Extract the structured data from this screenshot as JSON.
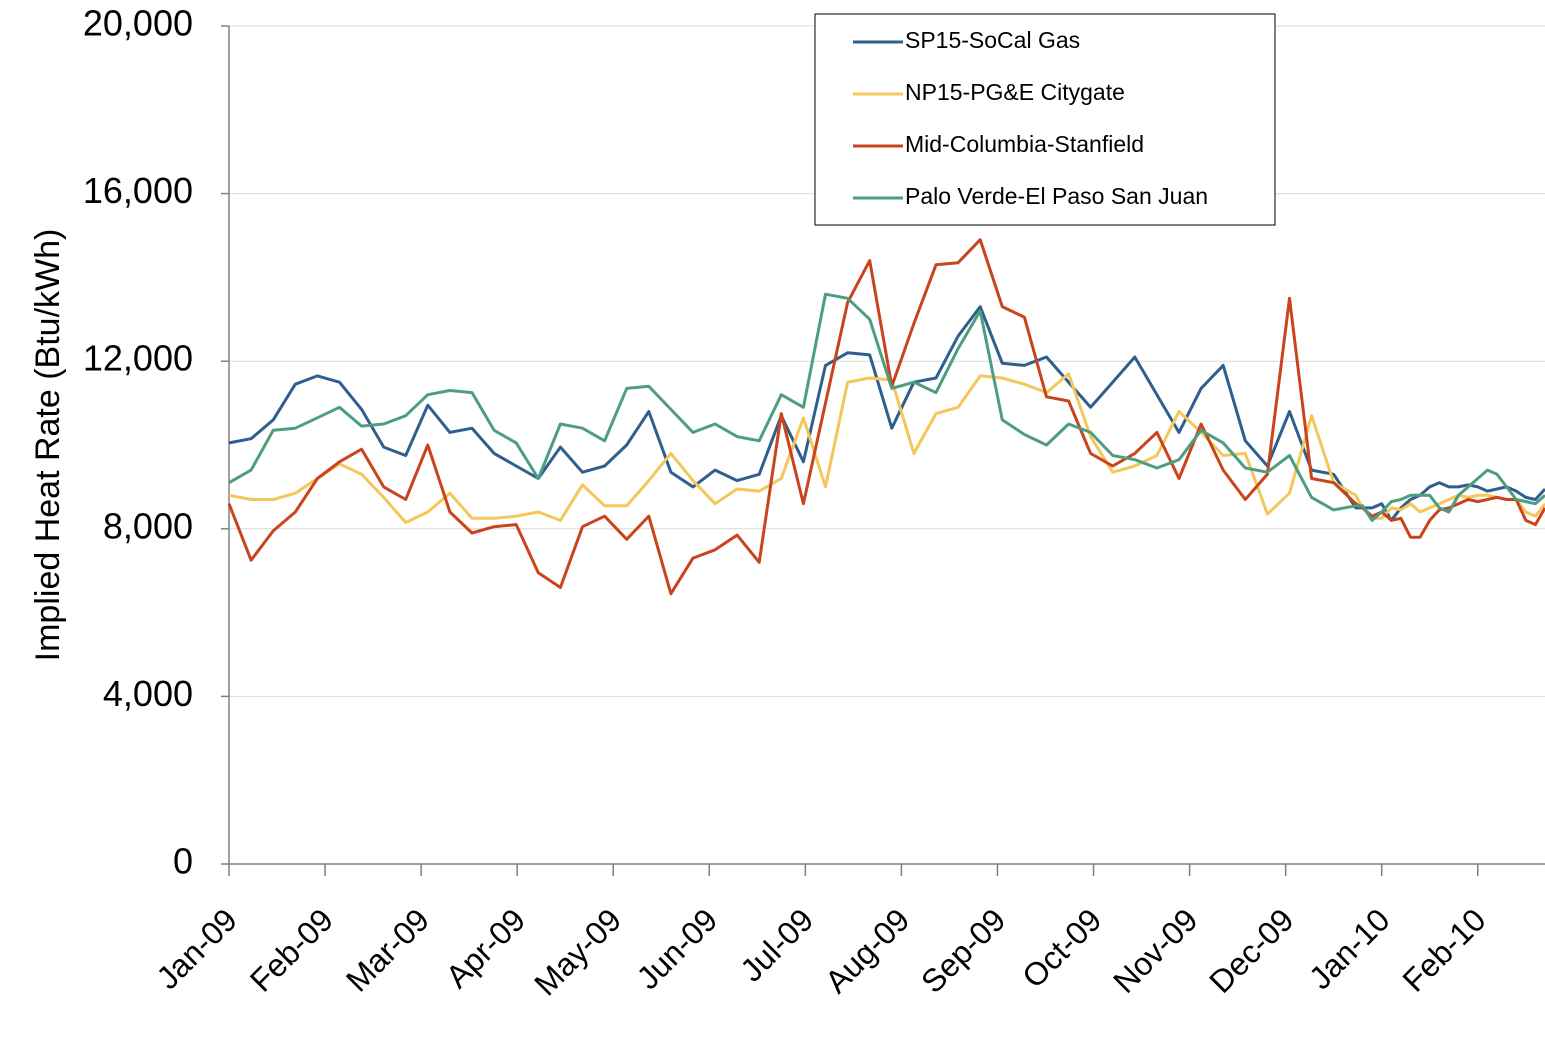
{
  "chart_data": {
    "type": "line",
    "ylabel": "Implied Heat Rate (Btu/kWh)",
    "x": [
      0,
      0.23,
      0.46,
      0.69,
      0.92,
      1.15,
      1.38,
      1.61,
      1.84,
      2.07,
      2.3,
      2.53,
      2.76,
      2.99,
      3.22,
      3.45,
      3.68,
      3.91,
      4.14,
      4.37,
      4.6,
      4.83,
      5.06,
      5.29,
      5.52,
      5.75,
      5.98,
      6.21,
      6.44,
      6.67,
      6.9,
      7.13,
      7.36,
      7.59,
      7.82,
      8.05,
      8.28,
      8.51,
      8.74,
      8.97,
      9.2,
      9.43,
      9.66,
      9.89,
      10.12,
      10.35,
      10.58,
      10.81,
      11.04,
      11.27,
      11.5,
      11.73,
      11.8,
      11.9,
      12,
      12.1,
      12.2,
      12.3,
      12.4,
      12.5,
      12.6,
      12.7,
      12.8,
      12.9,
      13,
      13.1,
      13.2,
      13.3,
      13.4,
      13.5,
      13.6,
      13.7
    ],
    "xlim": [
      0,
      13.7
    ],
    "xticks": [
      {
        "value": 0,
        "label": "Jan-09"
      },
      {
        "value": 1,
        "label": "Feb-09"
      },
      {
        "value": 2,
        "label": "Mar-09"
      },
      {
        "value": 3,
        "label": "Apr-09"
      },
      {
        "value": 4,
        "label": "May-09"
      },
      {
        "value": 5,
        "label": "Jun-09"
      },
      {
        "value": 6,
        "label": "Jul-09"
      },
      {
        "value": 7,
        "label": "Aug-09"
      },
      {
        "value": 8,
        "label": "Sep-09"
      },
      {
        "value": 9,
        "label": "Oct-09"
      },
      {
        "value": 10,
        "label": "Nov-09"
      },
      {
        "value": 11,
        "label": "Dec-09"
      },
      {
        "value": 12,
        "label": "Jan-10"
      },
      {
        "value": 13,
        "label": "Feb-10"
      }
    ],
    "ylim": [
      0,
      20000
    ],
    "yticks": [
      0,
      {
        "value": 4000,
        "label": "4,000"
      },
      {
        "value": 8000,
        "label": "8,000"
      },
      {
        "value": 12000,
        "label": "12,000"
      },
      {
        "value": 16000,
        "label": "16,000"
      },
      {
        "value": 20000,
        "label": "20,000"
      }
    ],
    "grid": true,
    "legend": "top-right",
    "series": [
      {
        "name": "SP15-SoCal Gas",
        "color": "#2e5f8f",
        "values": [
          10050,
          10150,
          10600,
          11450,
          11650,
          11500,
          10850,
          9950,
          9750,
          10950,
          10300,
          10400,
          9800,
          9500,
          9200,
          9950,
          9350,
          9500,
          10000,
          10800,
          9350,
          9000,
          9400,
          9150,
          9300,
          10700,
          9600,
          11900,
          12200,
          12150,
          10400,
          11500,
          11600,
          12600,
          13300,
          11950,
          11900,
          12100,
          11500,
          10900,
          11500,
          12100,
          11200,
          10300,
          11350,
          11900,
          10100,
          9500,
          10800,
          9400,
          9300,
          8500,
          8500,
          8500,
          8600,
          8200,
          8500,
          8700,
          8800,
          9000,
          9100,
          9000,
          9000,
          9050,
          9000,
          8900,
          8950,
          9000,
          8900,
          8750,
          8700,
          8950
        ]
      },
      {
        "name": "NP15-PG&E Citygate",
        "color": "#f5c65a",
        "values": [
          8800,
          8700,
          8700,
          8850,
          9200,
          9550,
          9300,
          8750,
          8150,
          8400,
          8850,
          8250,
          8250,
          8300,
          8400,
          8200,
          9050,
          8550,
          8550,
          9150,
          9800,
          9150,
          8600,
          8950,
          8900,
          9200,
          10650,
          9000,
          11500,
          11600,
          11550,
          9800,
          10750,
          10900,
          11650,
          11600,
          11450,
          11250,
          11700,
          10200,
          9350,
          9500,
          9750,
          10800,
          10300,
          9750,
          9800,
          8350,
          8850,
          10700,
          9100,
          8800,
          8500,
          8250,
          8250,
          8500,
          8450,
          8600,
          8400,
          8500,
          8600,
          8700,
          8800,
          8750,
          8800,
          8800,
          8750,
          8700,
          8700,
          8400,
          8300,
          8600
        ]
      },
      {
        "name": "Mid-Columbia-Stanfield",
        "color": "#c9441c",
        "values": [
          8600,
          7250,
          7950,
          8400,
          9200,
          9600,
          9900,
          9000,
          8700,
          10000,
          8400,
          7900,
          8050,
          8100,
          6950,
          6600,
          8050,
          8300,
          7750,
          8300,
          6450,
          7300,
          7500,
          7850,
          7200,
          10750,
          8600,
          11000,
          13400,
          14400,
          11400,
          12900,
          14300,
          14350,
          14900,
          13300,
          13050,
          11150,
          11050,
          9800,
          9500,
          9800,
          10300,
          9200,
          10500,
          9400,
          8700,
          9300,
          13500,
          9200,
          9100,
          8600,
          8500,
          8300,
          8400,
          8200,
          8250,
          7800,
          7800,
          8200,
          8450,
          8500,
          8600,
          8700,
          8650,
          8700,
          8750,
          8700,
          8700,
          8200,
          8100,
          8500
        ]
      },
      {
        "name": "Palo Verde-El Paso San Juan",
        "color": "#4d9e80",
        "values": [
          9100,
          9400,
          10350,
          10400,
          10650,
          10900,
          10450,
          10500,
          10700,
          11200,
          11300,
          11250,
          10350,
          10050,
          9200,
          10500,
          10400,
          10100,
          11350,
          11400,
          10850,
          10300,
          10500,
          10200,
          10100,
          11200,
          10900,
          13600,
          13500,
          13000,
          11350,
          11500,
          11250,
          12300,
          13200,
          10600,
          10250,
          10000,
          10500,
          10300,
          9750,
          9650,
          9450,
          9650,
          10350,
          10050,
          9450,
          9350,
          9750,
          8750,
          8450,
          8550,
          8550,
          8200,
          8400,
          8650,
          8700,
          8800,
          8800,
          8800,
          8500,
          8400,
          8800,
          9000,
          9200,
          9400,
          9300,
          9000,
          8700,
          8650,
          8600,
          8800
        ]
      }
    ]
  }
}
